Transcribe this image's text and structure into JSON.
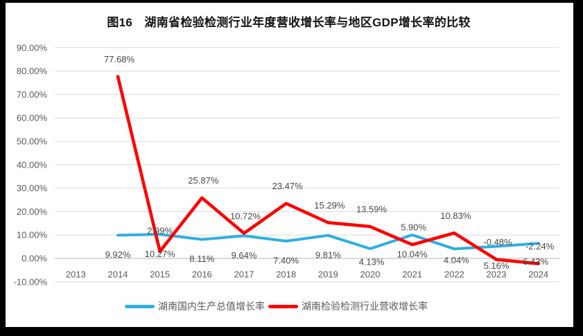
{
  "chart_data": {
    "type": "line",
    "title": "图16　湖南省检验检测行业年度营收增长率与地区GDP增长率的比较",
    "categories": [
      "2013",
      "2014",
      "2015",
      "2016",
      "2017",
      "2018",
      "2019",
      "2020",
      "2021",
      "2022",
      "2023",
      "2024"
    ],
    "series": [
      {
        "name": "湖南国内生产总值增长率",
        "color": "#2FAEE3",
        "label_position": "below",
        "values": [
          null,
          9.92,
          10.27,
          8.11,
          9.64,
          7.4,
          9.81,
          4.13,
          10.04,
          4.04,
          5.16,
          6.43
        ]
      },
      {
        "name": "湖南检验检测行业营收增长率",
        "color": "#FE0000",
        "label_position": "above",
        "values": [
          null,
          77.68,
          2.99,
          25.87,
          10.72,
          23.47,
          15.29,
          13.59,
          5.9,
          10.83,
          -0.48,
          -2.24
        ]
      }
    ],
    "ylim": [
      -10,
      90
    ],
    "y_tick_step": 10,
    "y_tick_format": "0.00%",
    "grid": true,
    "legend_position": "bottom",
    "layout_hints": {
      "label_offsets": [
        {
          "default": [
            0,
            28
          ],
          "overrides": {
            "7": [
              2,
              19
            ],
            "9": [
              3,
              16
            ],
            "11": [
              -4,
              26
            ]
          }
        },
        {
          "default": [
            2,
            -25
          ],
          "overrides": {
            "2": [
              0,
              -30
            ]
          }
        }
      ]
    }
  },
  "colors": {
    "background": "#FFFFFF",
    "page_edge": "#000000",
    "gridline": "#D9D9D9",
    "zero_line": "#C0C0C0",
    "axis_text": "#595959",
    "data_label_text": "#474747"
  }
}
